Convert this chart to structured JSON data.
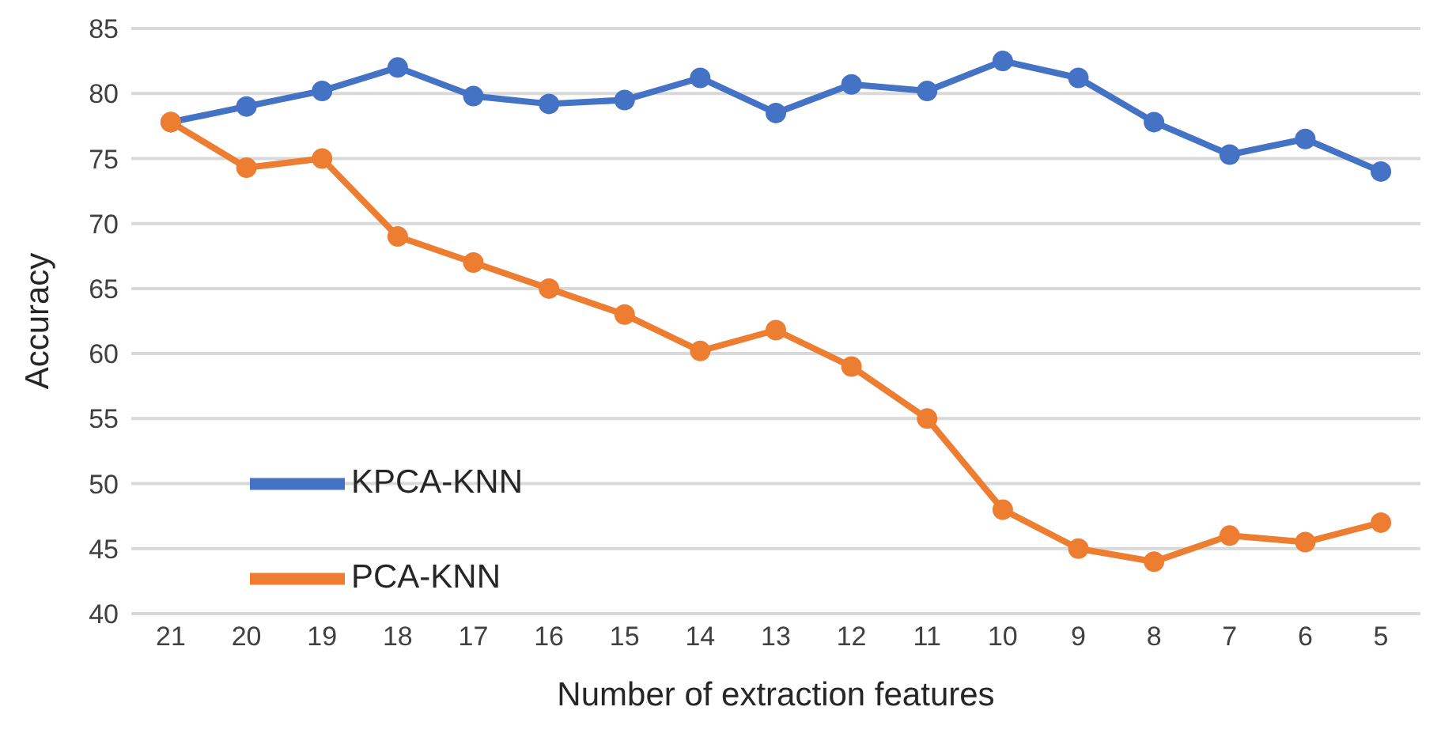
{
  "chart_data": {
    "type": "line",
    "xlabel": "Number of extraction features",
    "ylabel": "Accuracy",
    "categories": [
      "21",
      "20",
      "19",
      "18",
      "17",
      "16",
      "15",
      "14",
      "13",
      "12",
      "11",
      "10",
      "9",
      "8",
      "7",
      "6",
      "5"
    ],
    "series": [
      {
        "name": "KPCA-KNN",
        "color": "#4472c4",
        "values": [
          77.8,
          79,
          80.2,
          82,
          79.8,
          79.2,
          79.5,
          81.2,
          78.5,
          80.7,
          80.2,
          82.5,
          81.2,
          77.8,
          75.3,
          76.5,
          74
        ]
      },
      {
        "name": "PCA-KNN",
        "color": "#ed7d31",
        "values": [
          77.8,
          74.3,
          75,
          69,
          67,
          65,
          63,
          60.2,
          61.8,
          59,
          55,
          48,
          45,
          44,
          46,
          45.5,
          47
        ]
      }
    ],
    "ylim": [
      40,
      85
    ],
    "yticks": [
      40,
      45,
      50,
      55,
      60,
      65,
      70,
      75,
      80,
      85
    ],
    "grid": "y",
    "legend": "bottom left",
    "marker": "circle",
    "line_style": "solid"
  }
}
